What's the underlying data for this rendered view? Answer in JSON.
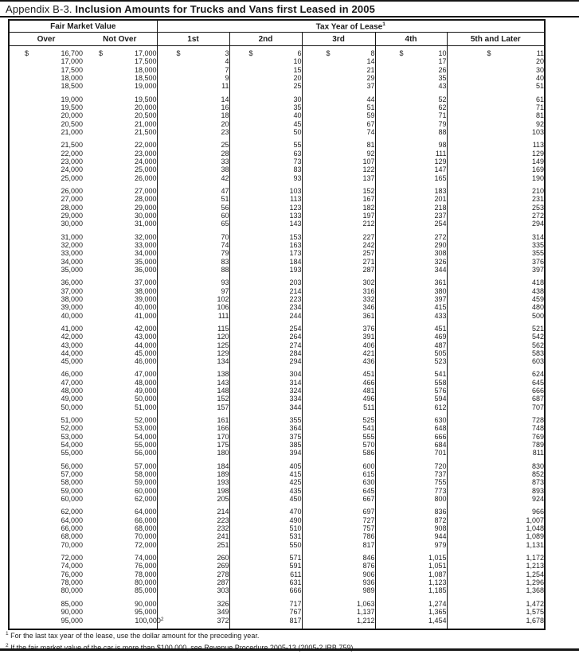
{
  "title": {
    "prefix": "Appendix B-3.",
    "main": "Inclusion Amounts for Trucks and Vans first Leased in 2005"
  },
  "table": {
    "fmv_header": "Fair Market Value",
    "tax_header": "Tax Year of Lease",
    "tax_header_sup": "1",
    "columns": [
      "Over",
      "Not Over",
      "1st",
      "2nd",
      "3rd",
      "4th",
      "5th and Later"
    ],
    "groups": [
      {
        "rows": [
          [
            "$ 16,700",
            "$ 17,000",
            "$ 3",
            "$ 6",
            "$ 8",
            "$ 10",
            "$ 11"
          ],
          [
            "17,000",
            "17,500",
            "4",
            "10",
            "14",
            "17",
            "20"
          ],
          [
            "17,500",
            "18,000",
            "7",
            "15",
            "21",
            "26",
            "30"
          ],
          [
            "18,000",
            "18,500",
            "9",
            "20",
            "29",
            "35",
            "40"
          ],
          [
            "18,500",
            "19,000",
            "11",
            "25",
            "37",
            "43",
            "51"
          ]
        ]
      },
      {
        "rows": [
          [
            "19,000",
            "19,500",
            "14",
            "30",
            "44",
            "52",
            "61"
          ],
          [
            "19,500",
            "20,000",
            "16",
            "35",
            "51",
            "62",
            "71"
          ],
          [
            "20,000",
            "20,500",
            "18",
            "40",
            "59",
            "71",
            "81"
          ],
          [
            "20,500",
            "21,000",
            "20",
            "45",
            "67",
            "79",
            "92"
          ],
          [
            "21,000",
            "21,500",
            "23",
            "50",
            "74",
            "88",
            "103"
          ]
        ]
      },
      {
        "rows": [
          [
            "21,500",
            "22,000",
            "25",
            "55",
            "81",
            "98",
            "113"
          ],
          [
            "22,000",
            "23,000",
            "28",
            "63",
            "92",
            "111",
            "129"
          ],
          [
            "23,000",
            "24,000",
            "33",
            "73",
            "107",
            "129",
            "149"
          ],
          [
            "24,000",
            "25,000",
            "38",
            "83",
            "122",
            "147",
            "169"
          ],
          [
            "25,000",
            "26,000",
            "42",
            "93",
            "137",
            "165",
            "190"
          ]
        ]
      },
      {
        "rows": [
          [
            "26,000",
            "27,000",
            "47",
            "103",
            "152",
            "183",
            "210"
          ],
          [
            "27,000",
            "28,000",
            "51",
            "113",
            "167",
            "201",
            "231"
          ],
          [
            "28,000",
            "29,000",
            "56",
            "123",
            "182",
            "218",
            "253"
          ],
          [
            "29,000",
            "30,000",
            "60",
            "133",
            "197",
            "237",
            "272"
          ],
          [
            "30,000",
            "31,000",
            "65",
            "143",
            "212",
            "254",
            "294"
          ]
        ]
      },
      {
        "rows": [
          [
            "31,000",
            "32,000",
            "70",
            "153",
            "227",
            "272",
            "314"
          ],
          [
            "32,000",
            "33,000",
            "74",
            "163",
            "242",
            "290",
            "335"
          ],
          [
            "33,000",
            "34,000",
            "79",
            "173",
            "257",
            "308",
            "355"
          ],
          [
            "34,000",
            "35,000",
            "83",
            "184",
            "271",
            "326",
            "376"
          ],
          [
            "35,000",
            "36,000",
            "88",
            "193",
            "287",
            "344",
            "397"
          ]
        ]
      },
      {
        "rows": [
          [
            "36,000",
            "37,000",
            "93",
            "203",
            "302",
            "361",
            "418"
          ],
          [
            "37,000",
            "38,000",
            "97",
            "214",
            "316",
            "380",
            "438"
          ],
          [
            "38,000",
            "39,000",
            "102",
            "223",
            "332",
            "397",
            "459"
          ],
          [
            "39,000",
            "40,000",
            "106",
            "234",
            "346",
            "415",
            "480"
          ],
          [
            "40,000",
            "41,000",
            "111",
            "244",
            "361",
            "433",
            "500"
          ]
        ]
      },
      {
        "rows": [
          [
            "41,000",
            "42,000",
            "115",
            "254",
            "376",
            "451",
            "521"
          ],
          [
            "42,000",
            "43,000",
            "120",
            "264",
            "391",
            "469",
            "542"
          ],
          [
            "43,000",
            "44,000",
            "125",
            "274",
            "406",
            "487",
            "562"
          ],
          [
            "44,000",
            "45,000",
            "129",
            "284",
            "421",
            "505",
            "583"
          ],
          [
            "45,000",
            "46,000",
            "134",
            "294",
            "436",
            "523",
            "603"
          ]
        ]
      },
      {
        "rows": [
          [
            "46,000",
            "47,000",
            "138",
            "304",
            "451",
            "541",
            "624"
          ],
          [
            "47,000",
            "48,000",
            "143",
            "314",
            "466",
            "558",
            "645"
          ],
          [
            "48,000",
            "49,000",
            "148",
            "324",
            "481",
            "576",
            "666"
          ],
          [
            "49,000",
            "50,000",
            "152",
            "334",
            "496",
            "594",
            "687"
          ],
          [
            "50,000",
            "51,000",
            "157",
            "344",
            "511",
            "612",
            "707"
          ]
        ]
      },
      {
        "rows": [
          [
            "51,000",
            "52,000",
            "161",
            "355",
            "525",
            "630",
            "728"
          ],
          [
            "52,000",
            "53,000",
            "166",
            "364",
            "541",
            "648",
            "748"
          ],
          [
            "53,000",
            "54,000",
            "170",
            "375",
            "555",
            "666",
            "769"
          ],
          [
            "54,000",
            "55,000",
            "175",
            "385",
            "570",
            "684",
            "789"
          ],
          [
            "55,000",
            "56,000",
            "180",
            "394",
            "586",
            "701",
            "811"
          ]
        ]
      },
      {
        "rows": [
          [
            "56,000",
            "57,000",
            "184",
            "405",
            "600",
            "720",
            "830"
          ],
          [
            "57,000",
            "58,000",
            "189",
            "415",
            "615",
            "737",
            "852"
          ],
          [
            "58,000",
            "59,000",
            "193",
            "425",
            "630",
            "755",
            "873"
          ],
          [
            "59,000",
            "60,000",
            "198",
            "435",
            "645",
            "773",
            "893"
          ],
          [
            "60,000",
            "62,000",
            "205",
            "450",
            "667",
            "800",
            "924"
          ]
        ]
      },
      {
        "rows": [
          [
            "62,000",
            "64,000",
            "214",
            "470",
            "697",
            "836",
            "966"
          ],
          [
            "64,000",
            "66,000",
            "223",
            "490",
            "727",
            "872",
            "1,007"
          ],
          [
            "66,000",
            "68,000",
            "232",
            "510",
            "757",
            "908",
            "1,048"
          ],
          [
            "68,000",
            "70,000",
            "241",
            "531",
            "786",
            "944",
            "1,089"
          ],
          [
            "70,000",
            "72,000",
            "251",
            "550",
            "817",
            "979",
            "1,131"
          ]
        ]
      },
      {
        "rows": [
          [
            "72,000",
            "74,000",
            "260",
            "571",
            "846",
            "1,015",
            "1,172"
          ],
          [
            "74,000",
            "76,000",
            "269",
            "591",
            "876",
            "1,051",
            "1,213"
          ],
          [
            "76,000",
            "78,000",
            "278",
            "611",
            "906",
            "1,087",
            "1,254"
          ],
          [
            "78,000",
            "80,000",
            "287",
            "631",
            "936",
            "1,123",
            "1,296"
          ],
          [
            "80,000",
            "85,000",
            "303",
            "666",
            "989",
            "1,185",
            "1,368"
          ]
        ]
      },
      {
        "rows": [
          [
            "85,000",
            "90,000",
            "326",
            "717",
            "1,063",
            "1,274",
            "1,472"
          ],
          [
            "90,000",
            "95,000",
            "349",
            "767",
            "1,137",
            "1,365",
            "1,575"
          ],
          [
            "95,000",
            "100,000^2",
            "372",
            "817",
            "1,212",
            "1,454",
            "1,678"
          ]
        ]
      }
    ]
  },
  "footnotes": [
    {
      "sup": "1",
      "text": "For the last tax year of the lease, use the dollar amount for the preceding year."
    },
    {
      "sup": "2",
      "text": "If the fair market value of the car is more than $100,000, see Revenue Procedure 2005-13 (2005-2 IRB 759)."
    }
  ]
}
